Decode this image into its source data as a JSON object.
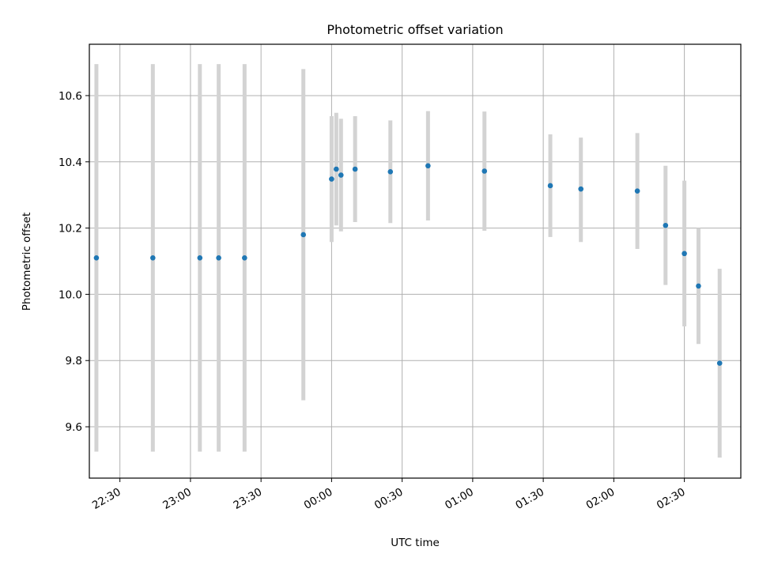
{
  "chart_data": {
    "type": "scatter",
    "title": "Photometric offset variation",
    "xlabel": "UTC time",
    "ylabel": "Photometric offset",
    "xlim": [
      "22:17",
      "02:54"
    ],
    "ylim": [
      9.445,
      10.755
    ],
    "grid": true,
    "xticks": [
      {
        "t": "22:30",
        "label": "22:30"
      },
      {
        "t": "23:00",
        "label": "23:00"
      },
      {
        "t": "23:30",
        "label": "23:30"
      },
      {
        "t": "00:00",
        "label": "00:00"
      },
      {
        "t": "00:30",
        "label": "00:30"
      },
      {
        "t": "01:00",
        "label": "01:00"
      },
      {
        "t": "01:30",
        "label": "01:30"
      },
      {
        "t": "02:00",
        "label": "02:00"
      },
      {
        "t": "02:30",
        "label": "02:30"
      }
    ],
    "yticks": [
      9.6,
      9.8,
      10.0,
      10.2,
      10.4,
      10.6
    ],
    "marker_color": "#1f77b4",
    "errorbar_color": "#d3d3d3",
    "points": [
      {
        "t": "22:20",
        "y": 10.11,
        "low": 9.525,
        "high": 10.695
      },
      {
        "t": "22:44",
        "y": 10.11,
        "low": 9.525,
        "high": 10.695
      },
      {
        "t": "23:04",
        "y": 10.11,
        "low": 9.525,
        "high": 10.695
      },
      {
        "t": "23:12",
        "y": 10.11,
        "low": 9.525,
        "high": 10.695
      },
      {
        "t": "23:23",
        "y": 10.11,
        "low": 9.525,
        "high": 10.695
      },
      {
        "t": "23:48",
        "y": 10.18,
        "low": 9.68,
        "high": 10.68
      },
      {
        "t": "00:00",
        "y": 10.348,
        "low": 10.158,
        "high": 10.538
      },
      {
        "t": "00:02",
        "y": 10.378,
        "low": 10.208,
        "high": 10.548
      },
      {
        "t": "00:04",
        "y": 10.36,
        "low": 10.19,
        "high": 10.53
      },
      {
        "t": "00:10",
        "y": 10.378,
        "low": 10.218,
        "high": 10.538
      },
      {
        "t": "00:25",
        "y": 10.37,
        "low": 10.215,
        "high": 10.525
      },
      {
        "t": "00:41",
        "y": 10.388,
        "low": 10.223,
        "high": 10.553
      },
      {
        "t": "01:05",
        "y": 10.372,
        "low": 10.192,
        "high": 10.552
      },
      {
        "t": "01:33",
        "y": 10.328,
        "low": 10.173,
        "high": 10.483
      },
      {
        "t": "01:46",
        "y": 10.318,
        "low": 10.158,
        "high": 10.473
      },
      {
        "t": "02:10",
        "y": 10.312,
        "low": 10.137,
        "high": 10.487
      },
      {
        "t": "02:22",
        "y": 10.208,
        "low": 10.028,
        "high": 10.388
      },
      {
        "t": "02:30",
        "y": 10.123,
        "low": 9.903,
        "high": 10.343
      },
      {
        "t": "02:36",
        "y": 10.025,
        "low": 9.85,
        "high": 10.2
      },
      {
        "t": "02:45",
        "y": 9.792,
        "low": 9.507,
        "high": 10.077
      }
    ]
  }
}
